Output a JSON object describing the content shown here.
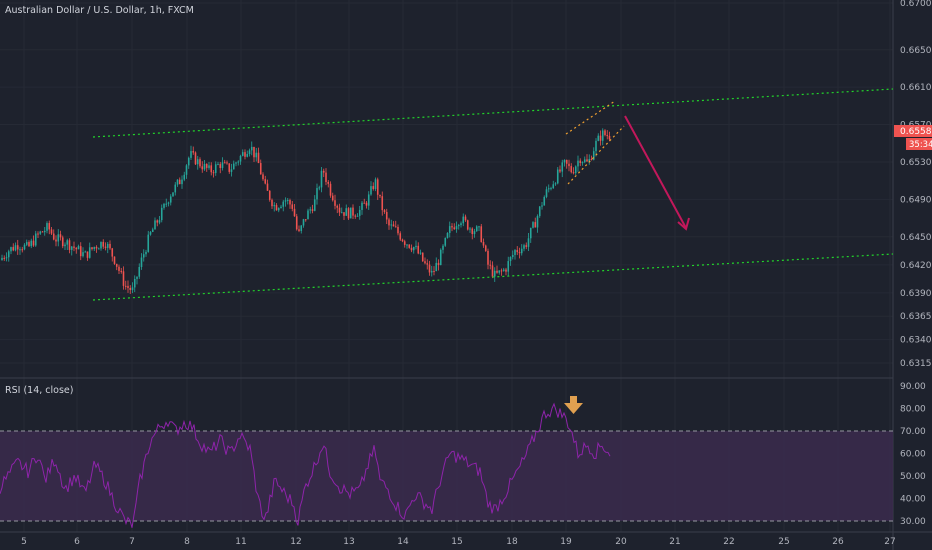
{
  "symbol_title": "Australian Dollar / U.S. Dollar, 1h, FXCM",
  "last_price": "0.65585",
  "countdown": "35:34",
  "rsi_label": "RSI (14, close)",
  "colors": {
    "background": "#1e222d",
    "up_candle": "#26a69a",
    "down_candle": "#ef5350",
    "channel_line": "#22d42b",
    "wedge_line": "#f0a030",
    "arrow_red": "#c2185b",
    "rsi_line": "#8e24aa",
    "rsi_band": "#3b2a4d",
    "price_tag": "#ef5350",
    "down_marker": "#e0a050"
  },
  "icons": {
    "rsi_marker": "down-arrow-icon",
    "projection": "arrow-icon"
  },
  "chart_data": [
    {
      "type": "candlestick",
      "title": "Australian Dollar / U.S. Dollar, 1h, FXCM",
      "x_ticks": [
        "5",
        "6",
        "7",
        "8",
        "11",
        "12",
        "13",
        "14",
        "15",
        "18",
        "19",
        "20",
        "21",
        "22",
        "25",
        "26",
        "27"
      ],
      "y_ticks": [
        "0.67000",
        "0.66500",
        "0.66100",
        "0.65700",
        "0.65300",
        "0.64900",
        "0.64500",
        "0.64200",
        "0.63900",
        "0.63650",
        "0.63400",
        "0.63150"
      ],
      "ylim": [
        0.6305,
        0.6705
      ],
      "last_price": 0.65585,
      "close_path": [
        [
          0,
          0.6425
        ],
        [
          8,
          0.6435
        ],
        [
          18,
          0.6442
        ],
        [
          28,
          0.6438
        ],
        [
          38,
          0.6452
        ],
        [
          48,
          0.646
        ],
        [
          55,
          0.6448
        ],
        [
          65,
          0.6445
        ],
        [
          75,
          0.6438
        ],
        [
          85,
          0.643
        ],
        [
          95,
          0.644
        ],
        [
          105,
          0.6445
        ],
        [
          115,
          0.6425
        ],
        [
          125,
          0.6398
        ],
        [
          133,
          0.6392
        ],
        [
          140,
          0.642
        ],
        [
          150,
          0.6452
        ],
        [
          160,
          0.6472
        ],
        [
          170,
          0.6495
        ],
        [
          180,
          0.651
        ],
        [
          190,
          0.6538
        ],
        [
          200,
          0.6528
        ],
        [
          210,
          0.652
        ],
        [
          220,
          0.6528
        ],
        [
          230,
          0.6522
        ],
        [
          240,
          0.6535
        ],
        [
          250,
          0.6548
        ],
        [
          258,
          0.653
        ],
        [
          265,
          0.6502
        ],
        [
          275,
          0.6482
        ],
        [
          285,
          0.649
        ],
        [
          293,
          0.6482
        ],
        [
          298,
          0.645
        ],
        [
          305,
          0.647
        ],
        [
          315,
          0.6488
        ],
        [
          323,
          0.6522
        ],
        [
          330,
          0.65
        ],
        [
          340,
          0.6478
        ],
        [
          350,
          0.6475
        ],
        [
          360,
          0.6478
        ],
        [
          368,
          0.649
        ],
        [
          375,
          0.651
        ],
        [
          380,
          0.6488
        ],
        [
          388,
          0.6462
        ],
        [
          395,
          0.6458
        ],
        [
          405,
          0.6445
        ],
        [
          415,
          0.6438
        ],
        [
          425,
          0.642
        ],
        [
          432,
          0.641
        ],
        [
          440,
          0.6428
        ],
        [
          450,
          0.6458
        ],
        [
          460,
          0.647
        ],
        [
          470,
          0.646
        ],
        [
          480,
          0.6455
        ],
        [
          488,
          0.642
        ],
        [
          495,
          0.6408
        ],
        [
          505,
          0.6415
        ],
        [
          515,
          0.6435
        ],
        [
          525,
          0.644
        ],
        [
          535,
          0.6465
        ],
        [
          545,
          0.6495
        ],
        [
          555,
          0.6512
        ],
        [
          565,
          0.6528
        ],
        [
          572,
          0.652
        ],
        [
          580,
          0.6535
        ],
        [
          588,
          0.6528
        ],
        [
          595,
          0.6548
        ],
        [
          602,
          0.656
        ],
        [
          608,
          0.65585
        ]
      ]
    },
    {
      "type": "line",
      "title": "RSI (14, close)",
      "y_ticks": [
        "90.00",
        "80.00",
        "70.00",
        "60.00",
        "50.00",
        "40.00",
        "30.00"
      ],
      "ylim": [
        26,
        92
      ],
      "bands": [
        30,
        70
      ],
      "series": [
        {
          "values": [
            [
              0,
              45
            ],
            [
              8,
              50
            ],
            [
              18,
              56
            ],
            [
              28,
              52
            ],
            [
              38,
              60
            ],
            [
              45,
              48
            ],
            [
              55,
              58
            ],
            [
              65,
              44
            ],
            [
              75,
              50
            ],
            [
              85,
              42
            ],
            [
              95,
              55
            ],
            [
              105,
              48
            ],
            [
              115,
              38
            ],
            [
              125,
              30
            ],
            [
              133,
              28
            ],
            [
              140,
              48
            ],
            [
              150,
              65
            ],
            [
              160,
              72
            ],
            [
              168,
              75
            ],
            [
              175,
              70
            ],
            [
              185,
              74
            ],
            [
              192,
              72
            ],
            [
              200,
              65
            ],
            [
              210,
              60
            ],
            [
              220,
              66
            ],
            [
              230,
              60
            ],
            [
              240,
              68
            ],
            [
              250,
              62
            ],
            [
              258,
              40
            ],
            [
              265,
              30
            ],
            [
              275,
              48
            ],
            [
              285,
              42
            ],
            [
              293,
              38
            ],
            [
              298,
              30
            ],
            [
              305,
              45
            ],
            [
              315,
              55
            ],
            [
              323,
              65
            ],
            [
              330,
              52
            ],
            [
              340,
              45
            ],
            [
              350,
              42
            ],
            [
              360,
              44
            ],
            [
              368,
              55
            ],
            [
              375,
              62
            ],
            [
              380,
              48
            ],
            [
              388,
              44
            ],
            [
              395,
              38
            ],
            [
              405,
              32
            ],
            [
              415,
              42
            ],
            [
              425,
              38
            ],
            [
              432,
              35
            ],
            [
              440,
              48
            ],
            [
              450,
              60
            ],
            [
              460,
              58
            ],
            [
              470,
              55
            ],
            [
              480,
              52
            ],
            [
              488,
              38
            ],
            [
              495,
              35
            ],
            [
              505,
              42
            ],
            [
              515,
              50
            ],
            [
              525,
              58
            ],
            [
              535,
              68
            ],
            [
              545,
              78
            ],
            [
              555,
              80
            ],
            [
              565,
              76
            ],
            [
              570,
              72
            ],
            [
              578,
              60
            ],
            [
              588,
              64
            ],
            [
              595,
              60
            ],
            [
              602,
              64
            ],
            [
              610,
              60
            ]
          ]
        }
      ]
    }
  ]
}
